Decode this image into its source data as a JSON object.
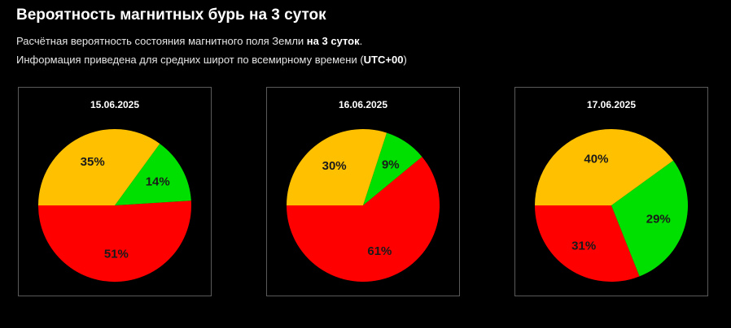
{
  "header": {
    "title": "Вероятность магнитных бурь на 3 суток",
    "subtitle1_pre": "Расчётная вероятность состояния магнитного поля Земли ",
    "subtitle1_bold": "на 3 суток",
    "subtitle1_post": ".",
    "subtitle2_pre": "Информация приведена для средних широт по всемирному времени (",
    "subtitle2_bold": "UTC+00",
    "subtitle2_post": ")"
  },
  "colors": {
    "green": "#00e000",
    "orange": "#ffc000",
    "red": "#ff0000"
  },
  "chart_data": [
    {
      "type": "pie",
      "title": "15.06.2025",
      "slices": [
        {
          "label": "51%",
          "value": 51,
          "color": "#ff0000"
        },
        {
          "label": "14%",
          "value": 14,
          "color": "#00e000"
        },
        {
          "label": "35%",
          "value": 35,
          "color": "#ffc000"
        }
      ]
    },
    {
      "type": "pie",
      "title": "16.06.2025",
      "slices": [
        {
          "label": "61%",
          "value": 61,
          "color": "#ff0000"
        },
        {
          "label": "9%",
          "value": 9,
          "color": "#00e000"
        },
        {
          "label": "30%",
          "value": 30,
          "color": "#ffc000"
        }
      ]
    },
    {
      "type": "pie",
      "title": "17.06.2025",
      "slices": [
        {
          "label": "31%",
          "value": 31,
          "color": "#ff0000"
        },
        {
          "label": "29%",
          "value": 29,
          "color": "#00e000"
        },
        {
          "label": "40%",
          "value": 40,
          "color": "#ffc000"
        }
      ]
    }
  ]
}
